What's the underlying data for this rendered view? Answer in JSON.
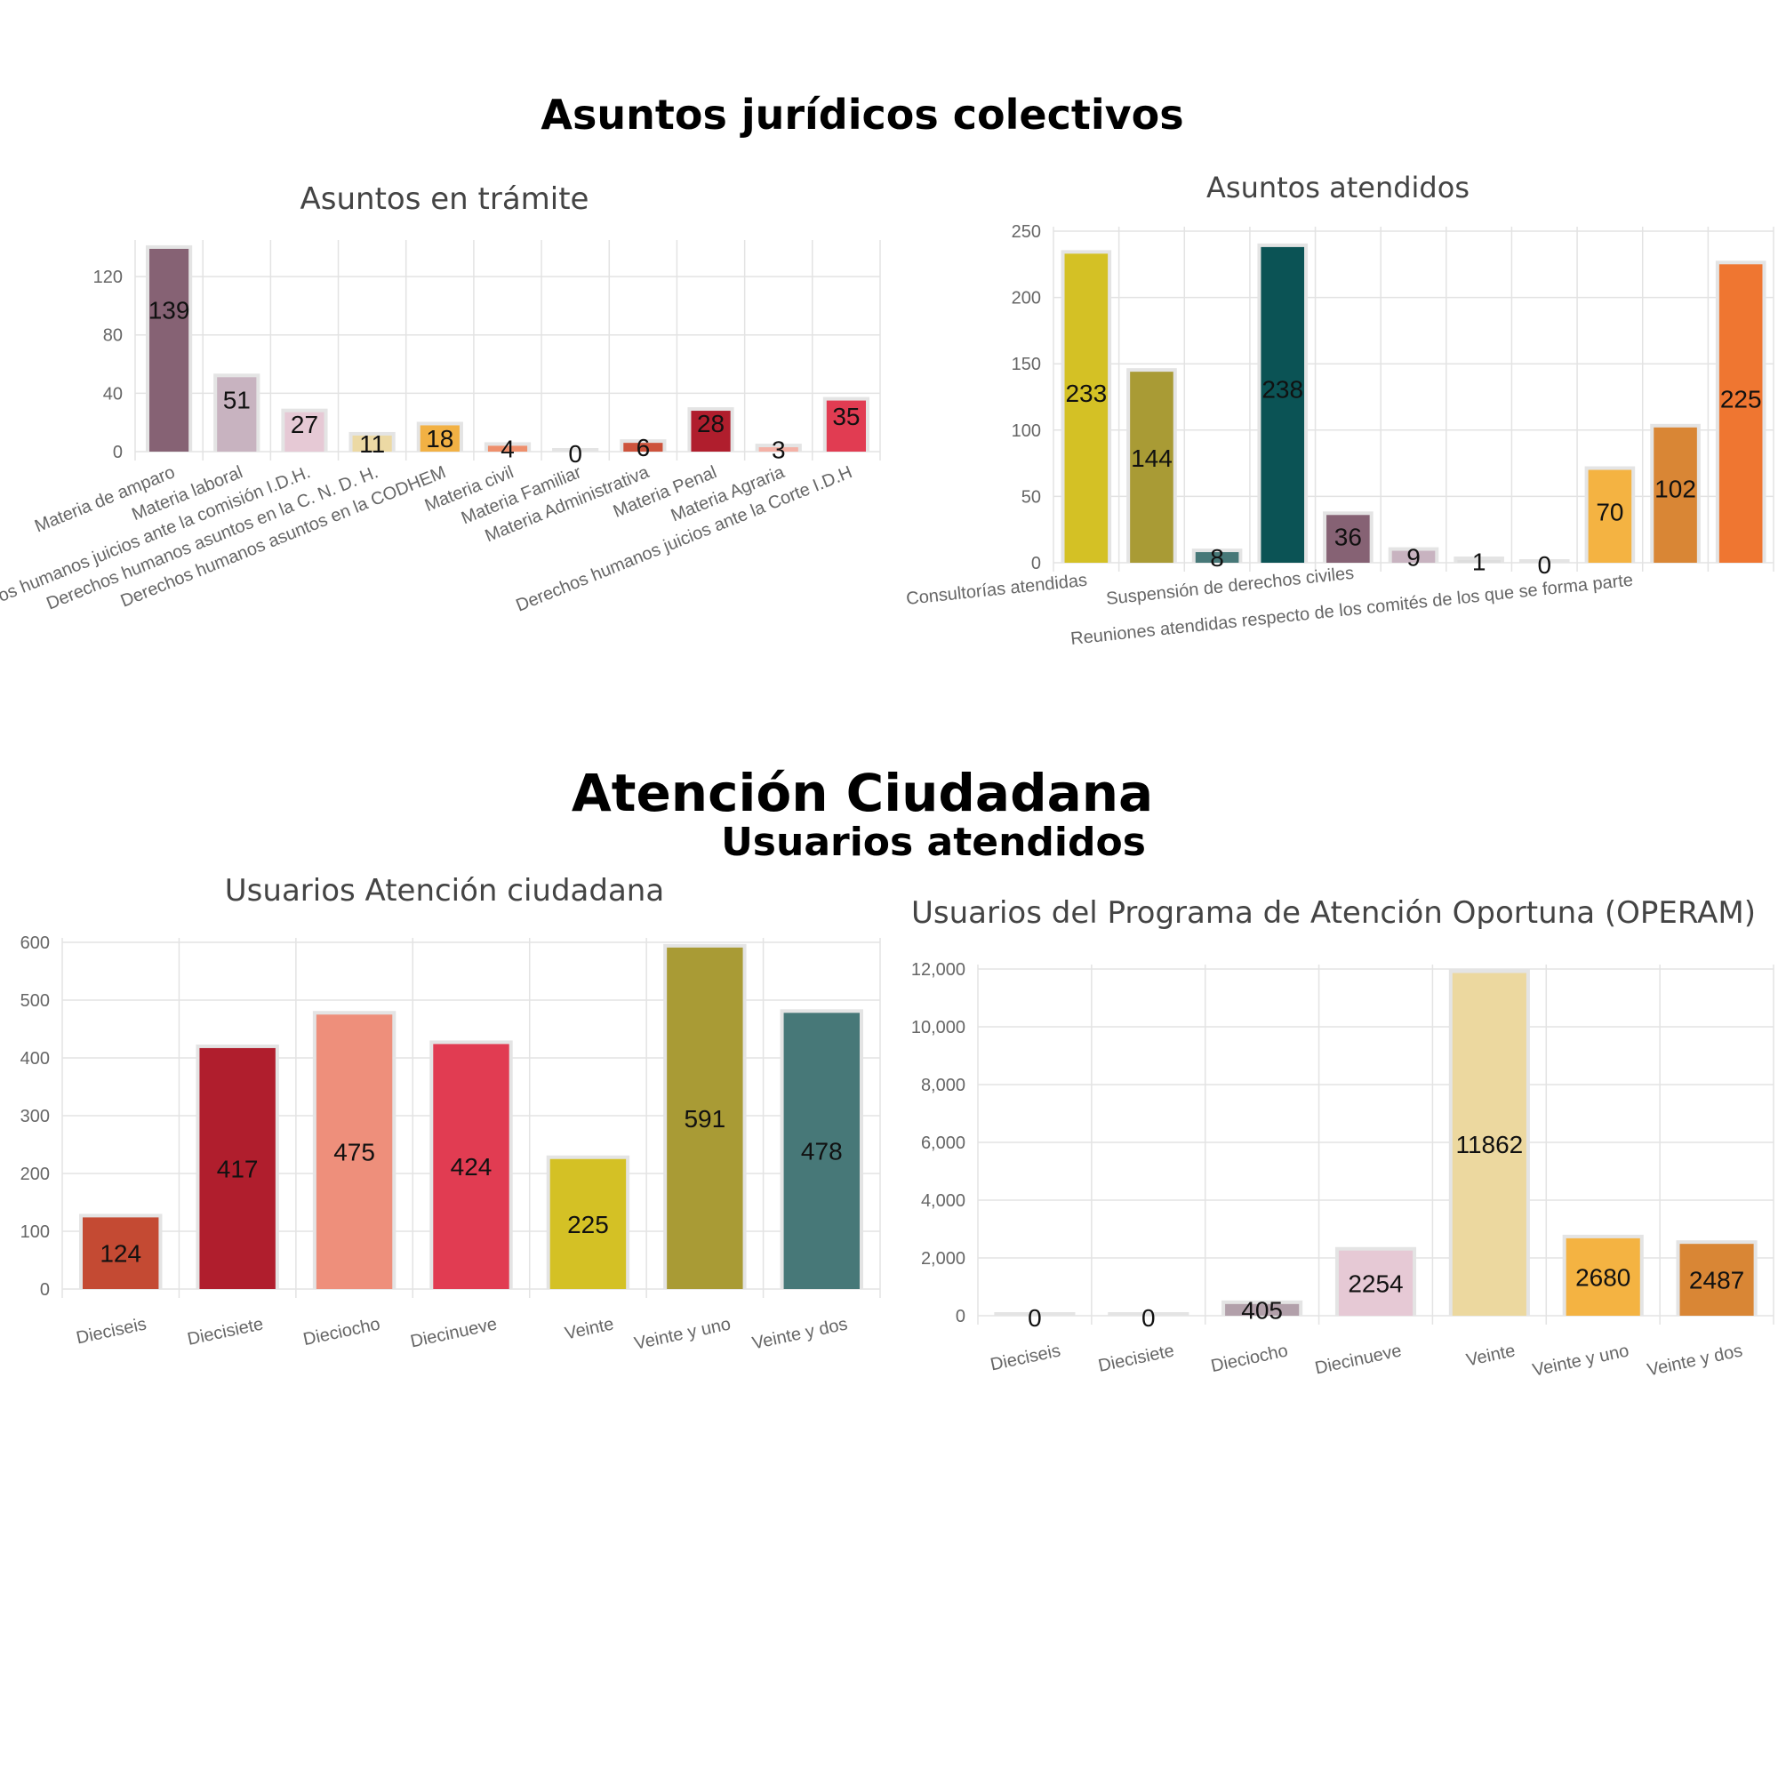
{
  "headings": {
    "juridicos": "Asuntos jurídicos colectivos",
    "atencion": "Atención Ciudadana",
    "usuarios": "Usuarios atendidos"
  },
  "chart_data": [
    {
      "id": "tramite",
      "type": "bar",
      "title": "Asuntos en trámite",
      "categories": [
        "Materia de amparo",
        "Materia laboral",
        "Derechos humanos juicios ante la comisión I.D.H.",
        "Derechos humanos asuntos en la C. N. D. H.",
        "Derechos humanos asuntos en la CODHEM",
        "Materia civil",
        "Materia Familiar",
        "Materia Administrativa",
        "Materia Penal",
        "Materia Agraria",
        "Derechos humanos juicios ante la Corte I.D.H"
      ],
      "values": [
        139,
        51,
        27,
        11,
        18,
        4,
        0,
        6,
        28,
        3,
        35
      ],
      "colors": [
        "#866274",
        "#c8b3c0",
        "#e6c9d5",
        "#ecd9a4",
        "#f2b144",
        "#ee8f6c",
        "#dddddd",
        "#cd533c",
        "#b01e2d",
        "#f4b1a6",
        "#e13c52"
      ],
      "yticks": [
        0,
        40,
        80,
        120
      ],
      "ylim": [
        0,
        142
      ],
      "grid": true,
      "legend": "none"
    },
    {
      "id": "atendidos",
      "type": "bar",
      "title": "Asuntos atendidos",
      "categories": [
        "Consultorías atendidas",
        "",
        "",
        "",
        "Suspensión de derechos civiles",
        "",
        "",
        "Reuniones atendidas respecto de los comités de los que se forma parte",
        "",
        "",
        ""
      ],
      "values": [
        233,
        144,
        8,
        238,
        36,
        9,
        1,
        0,
        70,
        102,
        225
      ],
      "colors": [
        "#d4c125",
        "#a99b35",
        "#477878",
        "#0b5355",
        "#866274",
        "#c8b3c0",
        "#dddddd",
        "#dddddd",
        "#f4b342",
        "#d98635",
        "#ef7631"
      ],
      "yticks": [
        0,
        50,
        100,
        150,
        200,
        250
      ],
      "ylim": [
        0,
        250
      ],
      "grid": true,
      "legend": "none"
    },
    {
      "id": "ciudadana",
      "type": "bar",
      "title": "Usuarios Atención ciudadana",
      "categories": [
        "Dieciseis",
        "Diecisiete",
        "Dieciocho",
        "Diecinueve",
        "Veinte",
        "Veinte y uno",
        "Veinte y dos"
      ],
      "values": [
        124,
        417,
        475,
        424,
        225,
        591,
        478
      ],
      "colors": [
        "#c44a33",
        "#b01e2d",
        "#ee8f7b",
        "#e13c52",
        "#d4c125",
        "#a99b35",
        "#477878"
      ],
      "yticks": [
        0,
        100,
        200,
        300,
        400,
        500,
        600
      ],
      "ylim": [
        0,
        600
      ],
      "grid": true,
      "legend": "none"
    },
    {
      "id": "operam",
      "type": "bar",
      "title": "Usuarios del Programa de Atención Oportuna (OPERAM)",
      "categories": [
        "Dieciseis",
        "Diecisiete",
        "Dieciocho",
        "Diecinueve",
        "Veinte",
        "Veinte y uno",
        "Veinte y dos"
      ],
      "values": [
        0,
        0,
        405,
        2254,
        11862,
        2680,
        2487
      ],
      "colors": [
        "#dddddd",
        "#dddddd",
        "#b2a0aa",
        "#e6c9d5",
        "#ecd89f",
        "#f4b342",
        "#d98635"
      ],
      "yticks": [
        0,
        2000,
        4000,
        6000,
        8000,
        10000,
        12000
      ],
      "ytick_labels": [
        "0",
        "2,000",
        "4,000",
        "6,000",
        "8,000",
        "10,000",
        "12,000"
      ],
      "ylim": [
        0,
        12000
      ],
      "grid": true,
      "legend": "none"
    }
  ]
}
